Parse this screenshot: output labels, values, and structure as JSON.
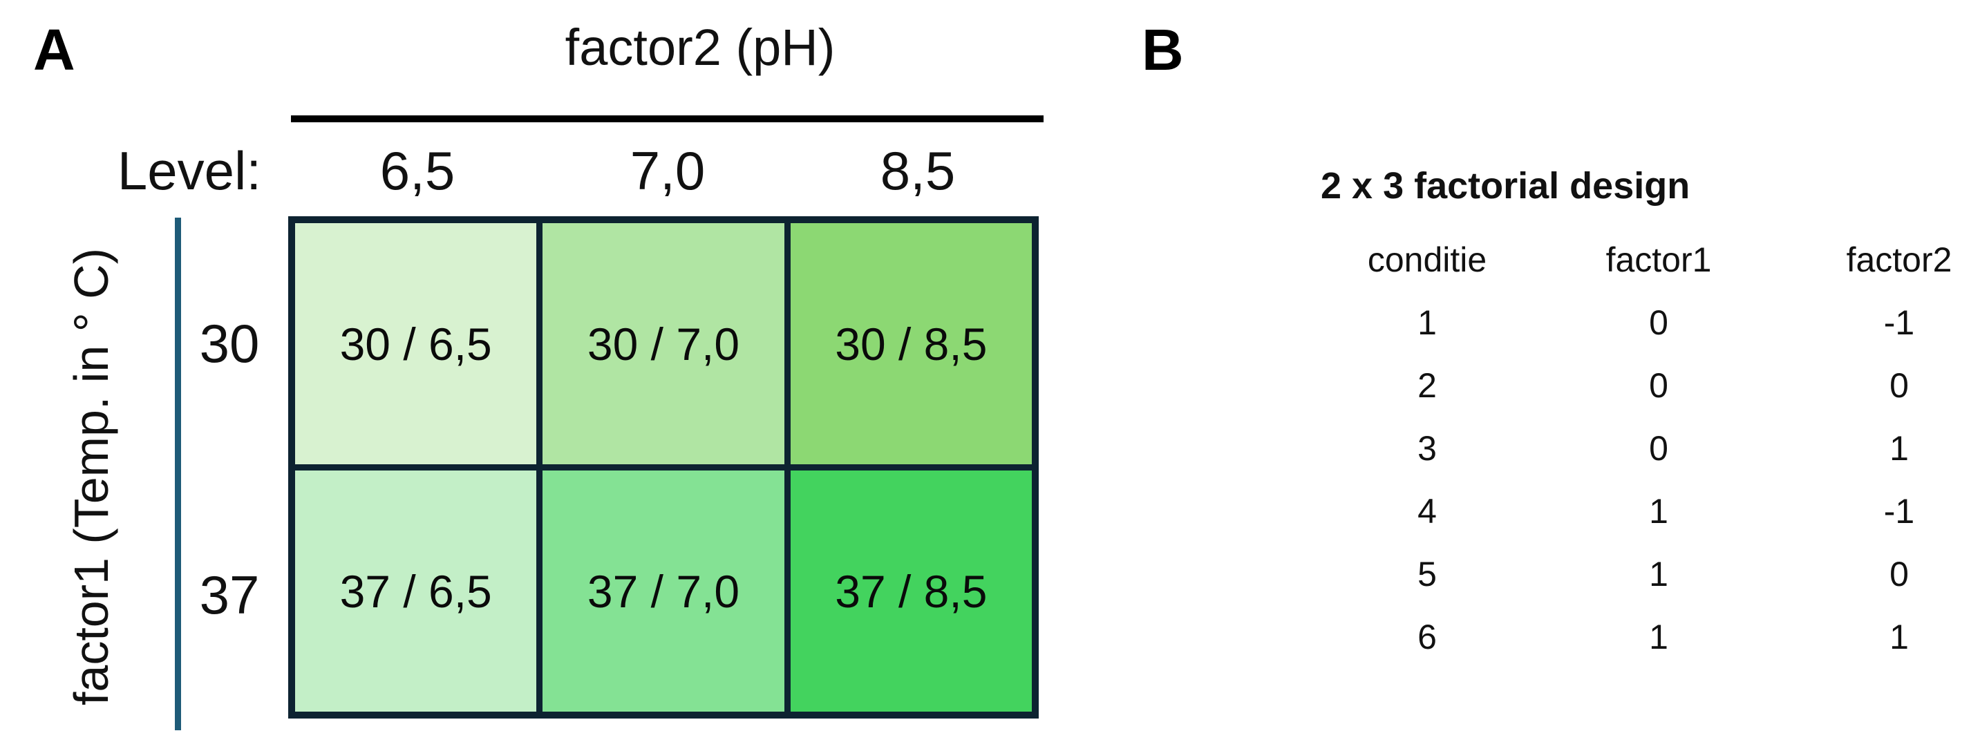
{
  "figure": {
    "panel_a": {
      "label": "A",
      "column_factor_title": "factor2 (pH)",
      "level_label": "Level:",
      "column_levels": [
        "6,5",
        "7,0",
        "8,5"
      ],
      "row_factor_title": "factor1 (Temp. in ° C)",
      "row_levels": [
        "30",
        "37"
      ],
      "cells": [
        {
          "text": "30 / 6,5",
          "color": "#d8f2d0"
        },
        {
          "text": "30 / 7,0",
          "color": "#b0e5a3"
        },
        {
          "text": "30 / 8,5",
          "color": "#8cd873"
        },
        {
          "text": "37 / 6,5",
          "color": "#c3efc7"
        },
        {
          "text": "37 / 7,0",
          "color": "#84e294"
        },
        {
          "text": "37 / 8,5",
          "color": "#43d35e"
        }
      ]
    },
    "panel_b": {
      "label": "B",
      "title": "2 x 3 factorial design",
      "columns": [
        "conditie",
        "factor1",
        "factor2"
      ],
      "rows": [
        [
          "1",
          "0",
          "-1"
        ],
        [
          "2",
          "0",
          "0"
        ],
        [
          "3",
          "0",
          "1"
        ],
        [
          "4",
          "1",
          "-1"
        ],
        [
          "5",
          "1",
          "0"
        ],
        [
          "6",
          "1",
          "1"
        ]
      ]
    },
    "colors": {
      "grid_border": "#0d2331",
      "row_axis_line": "#1e5b78",
      "column_rule": "#000000"
    }
  }
}
